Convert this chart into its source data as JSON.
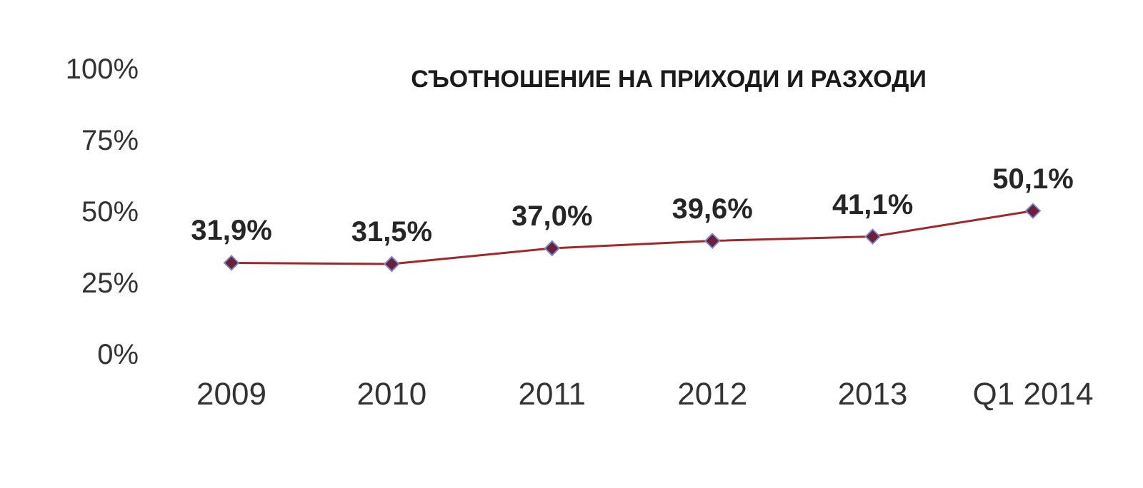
{
  "chart_data": {
    "type": "line",
    "title": "СЪОТНОШЕНИЕ НА ПРИХОДИ И РАЗХОДИ",
    "categories": [
      "2009",
      "2010",
      "2011",
      "2012",
      "2013",
      "Q1 2014"
    ],
    "series": [
      {
        "color": "#a0282a",
        "values": [
          31.9,
          31.5,
          37.0,
          39.6,
          41.1,
          50.1
        ],
        "value_labels": [
          "31,9%",
          "31,5%",
          "37,0%",
          "39,6%",
          "41,1%",
          "50,1%"
        ]
      }
    ],
    "ylim": [
      0,
      100
    ],
    "yticks": [
      {
        "value": 0,
        "label": "0%"
      },
      {
        "value": 25,
        "label": "25%"
      },
      {
        "value": 50,
        "label": "50%"
      },
      {
        "value": 75,
        "label": "75%"
      },
      {
        "value": 100,
        "label": "100%"
      }
    ],
    "marker": "diamond",
    "grid": false,
    "legend": false
  }
}
